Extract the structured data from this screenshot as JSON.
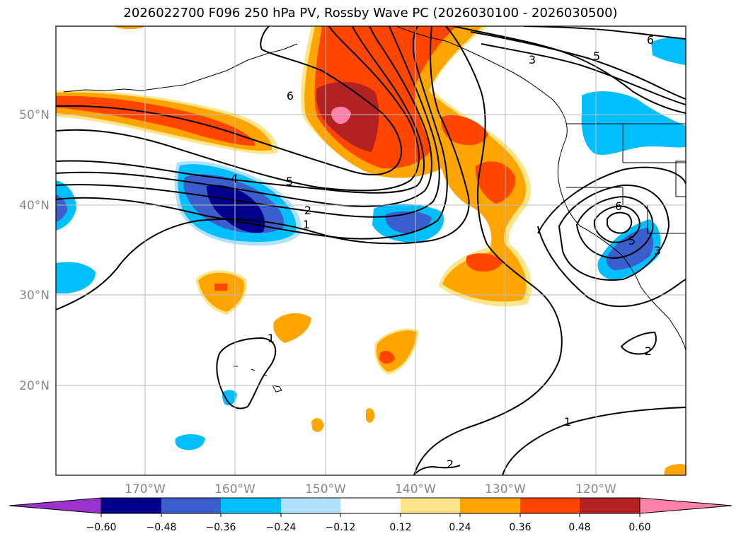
{
  "title": "2026022700 F096 250 hPa PV, Rossby Wave PC (2026030100 - 2026030500)",
  "map": {
    "lat_labels": [
      "50°N",
      "40°N",
      "30°N",
      "20°N"
    ],
    "lon_labels": [
      "170°W",
      "160°W",
      "150°W",
      "140°W",
      "130°W",
      "120°W"
    ]
  },
  "contour_labels": [
    "6",
    "3",
    "5",
    "6",
    "4",
    "5",
    "2",
    "1",
    "6",
    "5",
    "3",
    "1",
    "2",
    "1",
    "2"
  ],
  "colorbar": {
    "colors": [
      "#9933cc",
      "#00008b",
      "#3a5fcd",
      "#00bfff",
      "#b0e2ff",
      "#ffffff",
      "#fde68a",
      "#ffa500",
      "#ff4500",
      "#b22222",
      "#ff82ab"
    ],
    "tick_labels": [
      "−0.60",
      "−0.48",
      "−0.36",
      "−0.24",
      "−0.12",
      "0.12",
      "0.24",
      "0.36",
      "0.48",
      "0.60"
    ]
  },
  "colors": {
    "orange": "#ffa500",
    "red_orange": "#ff4500",
    "firebrick": "#b22222",
    "pink": "#ff82ab",
    "light_yellow": "#fde68a",
    "deep_sky_blue": "#00bfff",
    "royal_blue": "#3a5fcd",
    "navy": "#00008b",
    "light_blue": "#b0e2ff"
  }
}
